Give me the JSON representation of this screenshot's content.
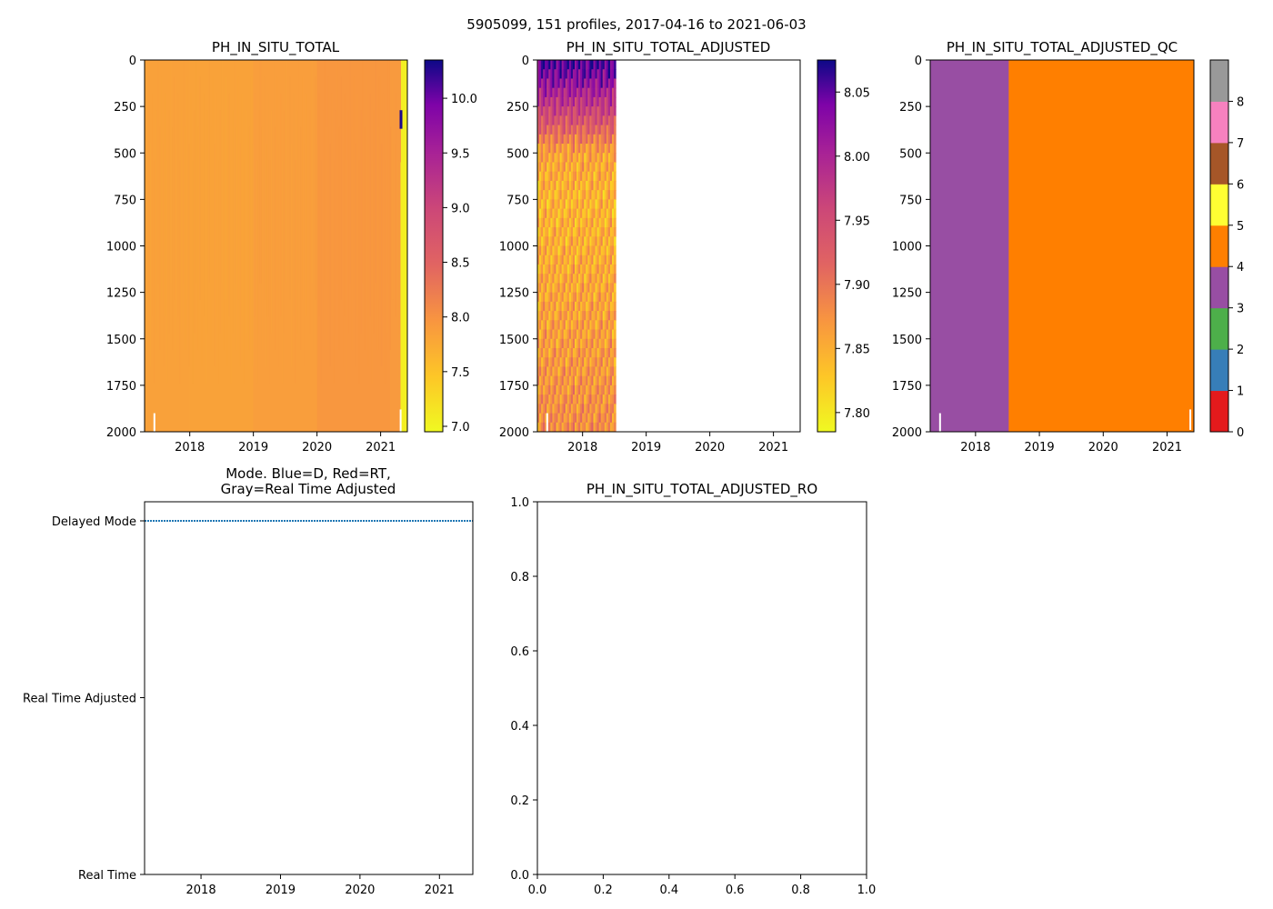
{
  "figure_title": "5905099, 151 profiles, 2017-04-16 to 2021-06-03",
  "chart_data": [
    {
      "id": "ph_total",
      "type": "heatmap",
      "title": "PH_IN_SITU_TOTAL",
      "x_range": [
        2017.29,
        2021.42
      ],
      "y_range": [
        2000,
        0
      ],
      "x_ticks": [
        "2018",
        "2019",
        "2020",
        "2021"
      ],
      "y_ticks": [
        "0",
        "250",
        "500",
        "750",
        "1000",
        "1250",
        "1500",
        "1750",
        "2000"
      ],
      "colorscale": "plasma_r",
      "colorbar_range": [
        6.95,
        10.35
      ],
      "colorbar_ticks": [
        "7.0",
        "7.5",
        "8.0",
        "8.5",
        "9.0",
        "9.5",
        "10.0"
      ],
      "bands": [
        {
          "x0": 2017.29,
          "x1": 2018.0,
          "value": 7.85
        },
        {
          "x0": 2018.0,
          "x1": 2019.0,
          "value": 7.83
        },
        {
          "x0": 2019.0,
          "x1": 2020.0,
          "value": 7.88
        },
        {
          "x0": 2020.0,
          "x1": 2021.15,
          "value": 7.95
        },
        {
          "x0": 2021.15,
          "x1": 2021.32,
          "value": 7.92
        }
      ],
      "last_profile": {
        "x0": 2021.32,
        "x1": 2021.42,
        "value": 7.05,
        "spike_value": 10.3,
        "spike_depth": [
          270,
          370
        ]
      }
    },
    {
      "id": "ph_adjusted",
      "type": "heatmap",
      "title": "PH_IN_SITU_TOTAL_ADJUSTED",
      "x_range": [
        2017.29,
        2021.42
      ],
      "y_range": [
        2000,
        0
      ],
      "x_ticks": [
        "2018",
        "2019",
        "2020",
        "2021"
      ],
      "y_ticks": [
        "0",
        "250",
        "500",
        "750",
        "1000",
        "1250",
        "1500",
        "1750",
        "2000"
      ],
      "colorscale": "plasma_r",
      "colorbar_range": [
        7.785,
        8.075
      ],
      "colorbar_ticks": [
        "7.80",
        "7.85",
        "7.90",
        "7.95",
        "8.00",
        "8.05"
      ],
      "data_x_range": [
        2017.29,
        2018.52
      ],
      "depth_profile": [
        {
          "depth": 0,
          "value": 8.06
        },
        {
          "depth": 100,
          "value": 8.03
        },
        {
          "depth": 200,
          "value": 7.99
        },
        {
          "depth": 350,
          "value": 7.93
        },
        {
          "depth": 500,
          "value": 7.86
        },
        {
          "depth": 750,
          "value": 7.845
        },
        {
          "depth": 1000,
          "value": 7.85
        },
        {
          "depth": 1500,
          "value": 7.865
        },
        {
          "depth": 2000,
          "value": 7.88
        }
      ]
    },
    {
      "id": "ph_adjusted_qc",
      "type": "heatmap",
      "title": "PH_IN_SITU_TOTAL_ADJUSTED_QC",
      "x_range": [
        2017.29,
        2021.42
      ],
      "y_range": [
        2000,
        0
      ],
      "x_ticks": [
        "2018",
        "2019",
        "2020",
        "2021"
      ],
      "y_ticks": [
        "0",
        "250",
        "500",
        "750",
        "1000",
        "1250",
        "1500",
        "1750",
        "2000"
      ],
      "colorbar_range": [
        0,
        9
      ],
      "colorbar_ticks": [
        "0",
        "1",
        "2",
        "3",
        "4",
        "5",
        "6",
        "7",
        "8"
      ],
      "qc_colors": [
        "#e41a1c",
        "#377eb8",
        "#4daf4a",
        "#984ea3",
        "#ff7f00",
        "#ffff33",
        "#a65628",
        "#f781bf",
        "#999999"
      ],
      "bands": [
        {
          "x0": 2017.29,
          "x1": 2018.52,
          "flag": 3
        },
        {
          "x0": 2018.52,
          "x1": 2021.42,
          "flag": 4
        }
      ]
    },
    {
      "id": "mode",
      "type": "line",
      "title_lines": [
        "Mode. Blue=D, Red=RT,",
        "Gray=Real Time Adjusted"
      ],
      "x_range": [
        2017.29,
        2021.42
      ],
      "x_ticks": [
        "2018",
        "2019",
        "2020",
        "2021"
      ],
      "categories": [
        "Real Time",
        "Real Time Adjusted",
        "Delayed Mode"
      ],
      "series": [
        {
          "name": "Delayed Mode",
          "color": "#1f77b4",
          "x": [
            2017.29,
            2021.42
          ],
          "y": [
            2,
            2
          ]
        }
      ]
    },
    {
      "id": "ph_adjusted_ro",
      "type": "scatter",
      "title": "PH_IN_SITU_TOTAL_ADJUSTED_RO",
      "x_range": [
        0,
        1
      ],
      "y_range": [
        0,
        1
      ],
      "x_ticks": [
        "0.0",
        "0.2",
        "0.4",
        "0.6",
        "0.8",
        "1.0"
      ],
      "y_ticks": [
        "0.0",
        "0.2",
        "0.4",
        "0.6",
        "0.8",
        "1.0"
      ],
      "series": []
    }
  ]
}
